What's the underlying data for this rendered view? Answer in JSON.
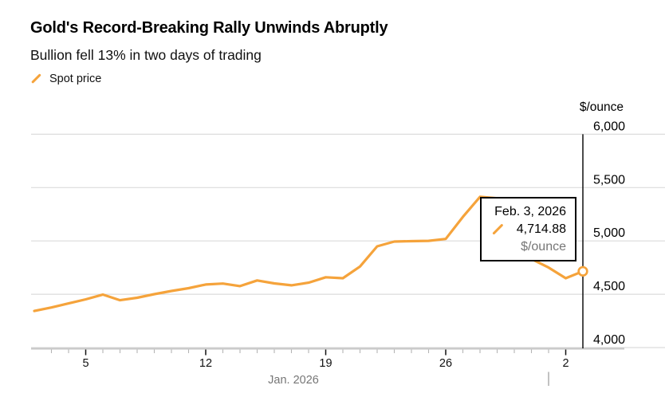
{
  "header": {
    "title": "Gold's Record-Breaking Rally Unwinds Abruptly",
    "subtitle": "Bullion fell 13% in two days of trading"
  },
  "legend": {
    "series_label": "Spot price"
  },
  "y_axis": {
    "unit": "$/ounce",
    "tick_labels": [
      "6,000",
      "5,500",
      "5,000",
      "4,500",
      "4,000"
    ]
  },
  "x_axis": {
    "month_label": "Jan. 2026",
    "tick_labels": [
      "5",
      "12",
      "19",
      "26",
      "2"
    ]
  },
  "tooltip": {
    "date": "Feb. 3, 2026",
    "value": "4,714.88",
    "unit": "$/ounce"
  },
  "colors": {
    "accent": "#F5A33B",
    "grid": "#DCDCDC",
    "baseline": "#C9C9C9",
    "tick_minor": "#B5B5B5",
    "tick_major": "#111111",
    "month_divider": "#9A9A9A",
    "current_line": "#000000",
    "text": "#000000",
    "text_muted": "#767676"
  },
  "chart_data": {
    "type": "line",
    "title": "Gold's Record-Breaking Rally Unwinds Abruptly",
    "subtitle": "Bullion fell 13% in two days of trading",
    "xlabel": "Jan. 2026",
    "ylabel": "$/ounce",
    "ylim": [
      4000,
      6000
    ],
    "y_gridlines": [
      6000,
      5500,
      5000,
      4500,
      4000
    ],
    "grid": true,
    "legend_position": "top-left",
    "series": [
      {
        "name": "Spot price",
        "points": [
          {
            "date": "Jan 2, 2026",
            "value": 4343
          },
          {
            "date": "Jan 3, 2026",
            "value": 4376
          },
          {
            "date": "Jan 4, 2026",
            "value": 4414
          },
          {
            "date": "Jan 5, 2026",
            "value": 4452
          },
          {
            "date": "Jan 6, 2026",
            "value": 4497
          },
          {
            "date": "Jan 7, 2026",
            "value": 4444
          },
          {
            "date": "Jan 8, 2026",
            "value": 4467
          },
          {
            "date": "Jan 9, 2026",
            "value": 4501
          },
          {
            "date": "Jan 10, 2026",
            "value": 4531
          },
          {
            "date": "Jan 11, 2026",
            "value": 4557
          },
          {
            "date": "Jan 12, 2026",
            "value": 4591
          },
          {
            "date": "Jan 13, 2026",
            "value": 4600
          },
          {
            "date": "Jan 14, 2026",
            "value": 4576
          },
          {
            "date": "Jan 15, 2026",
            "value": 4629
          },
          {
            "date": "Jan 16, 2026",
            "value": 4602
          },
          {
            "date": "Jan 17, 2026",
            "value": 4584
          },
          {
            "date": "Jan 18, 2026",
            "value": 4608
          },
          {
            "date": "Jan 19, 2026",
            "value": 4659
          },
          {
            "date": "Jan 20, 2026",
            "value": 4650
          },
          {
            "date": "Jan 21, 2026",
            "value": 4760
          },
          {
            "date": "Jan 22, 2026",
            "value": 4949
          },
          {
            "date": "Jan 23, 2026",
            "value": 4994
          },
          {
            "date": "Jan 24, 2026",
            "value": 4998
          },
          {
            "date": "Jan 25, 2026",
            "value": 5001
          },
          {
            "date": "Jan 26, 2026",
            "value": 5019
          },
          {
            "date": "Jan 27, 2026",
            "value": 5225
          },
          {
            "date": "Jan 28, 2026",
            "value": 5413
          },
          {
            "date": "Jan 29, 2026",
            "value": 5400
          },
          {
            "date": "Jan 30, 2026",
            "value": 5380
          },
          {
            "date": "Jan 31, 2026",
            "value": 4830
          },
          {
            "date": "Feb 1, 2026",
            "value": 4750
          },
          {
            "date": "Feb 2, 2026",
            "value": 4650
          },
          {
            "date": "Feb 3, 2026",
            "value": 4714.88
          }
        ]
      }
    ],
    "x_ticks": [
      {
        "label": "5",
        "day_index": 3
      },
      {
        "label": "12",
        "day_index": 10
      },
      {
        "label": "19",
        "day_index": 17
      },
      {
        "label": "26",
        "day_index": 24
      },
      {
        "label": "2",
        "day_index": 31
      }
    ],
    "month_divider_day_index": 30,
    "highlight": {
      "date": "Feb. 3, 2026",
      "value": 4714.88,
      "marker": "open-circle"
    }
  }
}
